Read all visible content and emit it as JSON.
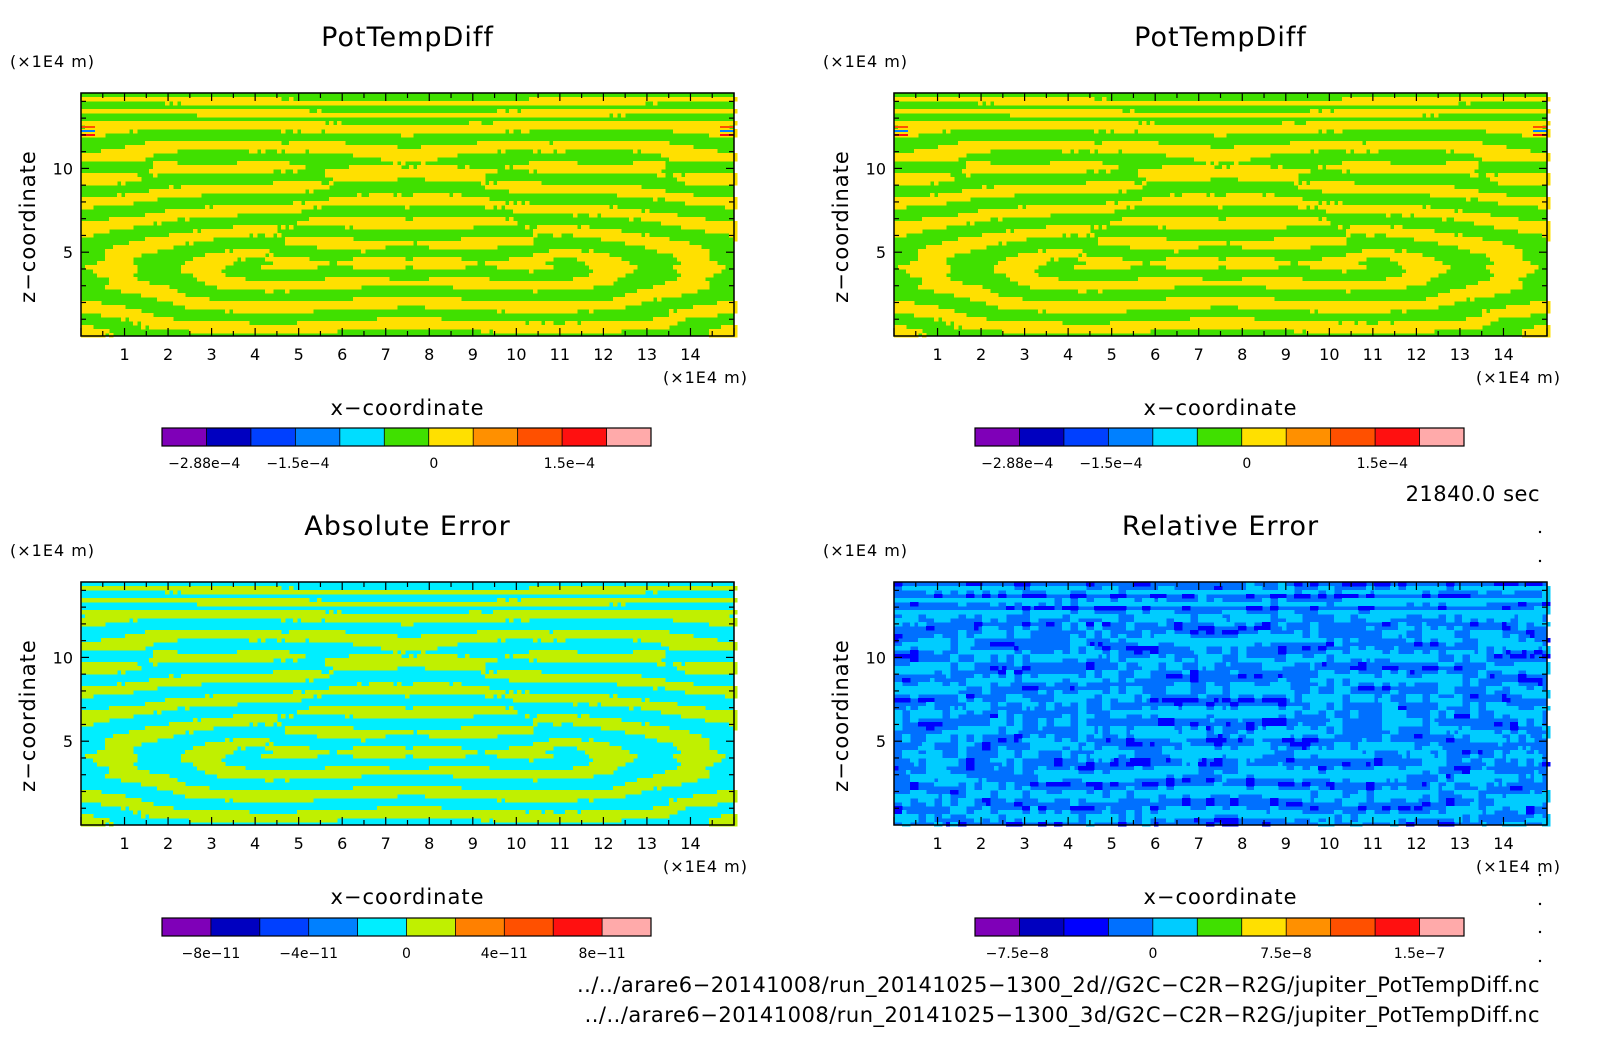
{
  "charts": [
    {
      "title": "PotTempDiff",
      "xlabel": "x−coordinate",
      "ylabel": "z−coordinate",
      "x_unit": "(×1E4 m)",
      "y_unit": "(×1E4 m)",
      "x_ticks": [
        "1",
        "2",
        "3",
        "4",
        "5",
        "6",
        "7",
        "8",
        "9",
        "10",
        "11",
        "12",
        "13",
        "14"
      ],
      "y_ticks": [
        "5",
        "10"
      ],
      "colorbar_labels": [
        "−2.88e−4",
        "−1.5e−4",
        "0",
        "1.5e−4"
      ]
    },
    {
      "title": "PotTempDiff",
      "xlabel": "x−coordinate",
      "ylabel": "z−coordinate",
      "x_unit": "(×1E4 m)",
      "y_unit": "(×1E4 m)",
      "x_ticks": [
        "1",
        "2",
        "3",
        "4",
        "5",
        "6",
        "7",
        "8",
        "9",
        "10",
        "11",
        "12",
        "13",
        "14"
      ],
      "y_ticks": [
        "5",
        "10"
      ],
      "colorbar_labels": [
        "−2.88e−4",
        "−1.5e−4",
        "0",
        "1.5e−4"
      ]
    },
    {
      "title": "Absolute Error",
      "xlabel": "x−coordinate",
      "ylabel": "z−coordinate",
      "x_unit": "(×1E4 m)",
      "y_unit": "(×1E4 m)",
      "x_ticks": [
        "1",
        "2",
        "3",
        "4",
        "5",
        "6",
        "7",
        "8",
        "9",
        "10",
        "11",
        "12",
        "13",
        "14"
      ],
      "y_ticks": [
        "5",
        "10"
      ],
      "colorbar_labels": [
        "−8e−11",
        "−4e−11",
        "0",
        "4e−11",
        "8e−11"
      ]
    },
    {
      "title": "Relative Error",
      "xlabel": "x−coordinate",
      "ylabel": "z−coordinate",
      "x_unit": "(×1E4 m)",
      "y_unit": "(×1E4 m)",
      "x_ticks": [
        "1",
        "2",
        "3",
        "4",
        "5",
        "6",
        "7",
        "8",
        "9",
        "10",
        "11",
        "12",
        "13",
        "14"
      ],
      "y_ticks": [
        "5",
        "10"
      ],
      "colorbar_labels": [
        "−7.5e−8",
        "0",
        "7.5e−8",
        "1.5e−7"
      ]
    }
  ],
  "time_label": "21840.0 sec",
  "file_paths": [
    "../../arare6−20141008/run_20141025−1300_2d//G2C−C2R−R2G/jupiter_PotTempDiff.nc",
    "../../arare6−20141008/run_20141025−1300_3d/G2C−C2R−R2G/jupiter_PotTempDiff.nc"
  ],
  "palette": [
    "#7f00b8",
    "#0000c0",
    "#0040ff",
    "#0080ff",
    "#00ddff",
    "#40e000",
    "#ffe000",
    "#ff9000",
    "#ff5000",
    "#ff1010",
    "#ffaaaa"
  ],
  "palette_abs": [
    "#7f00b8",
    "#0000c0",
    "#0040ff",
    "#0080ff",
    "#00eeff",
    "#c0f000",
    "#ffaa00",
    "#ff8000",
    "#ff5000",
    "#ff1010",
    "#ffaaaa"
  ],
  "palette_rel": [
    "#7f00b8",
    "#0000c0",
    "#0000ff",
    "#0070ff",
    "#00ccff",
    "#40e000",
    "#ffe000",
    "#ff9000",
    "#ff5000",
    "#ff1010",
    "#ffaaaa"
  ],
  "chart_data": [
    {
      "type": "heatmap",
      "title": "PotTempDiff",
      "xlabel": "x−coordinate",
      "ylabel": "z−coordinate",
      "xlim": [
        0,
        15
      ],
      "ylim": [
        0,
        14.5
      ],
      "colorbar": {
        "levels": 11,
        "tick_values": [
          -0.000288,
          -0.00015,
          0,
          0.00015
        ],
        "dominant_colors": [
          "#40e000",
          "#ffe000"
        ]
      }
    },
    {
      "type": "heatmap",
      "title": "PotTempDiff",
      "xlabel": "x−coordinate",
      "ylabel": "z−coordinate",
      "xlim": [
        0,
        15
      ],
      "ylim": [
        0,
        14.5
      ],
      "colorbar": {
        "levels": 11,
        "tick_values": [
          -0.000288,
          -0.00015,
          0,
          0.00015
        ],
        "dominant_colors": [
          "#40e000",
          "#ffe000"
        ]
      }
    },
    {
      "type": "heatmap",
      "title": "Absolute Error",
      "xlabel": "x−coordinate",
      "ylabel": "z−coordinate",
      "xlim": [
        0,
        15
      ],
      "ylim": [
        0,
        14.5
      ],
      "colorbar": {
        "levels": 10,
        "tick_values": [
          -8e-11,
          -4e-11,
          0,
          4e-11,
          8e-11
        ],
        "dominant_colors": [
          "#00eeff",
          "#c0f000"
        ]
      }
    },
    {
      "type": "heatmap",
      "title": "Relative Error",
      "xlabel": "x−coordinate",
      "ylabel": "z−coordinate",
      "xlim": [
        0,
        15
      ],
      "ylim": [
        0,
        14.5
      ],
      "colorbar": {
        "levels": 11,
        "tick_values": [
          -7.5e-08,
          0,
          7.5e-08,
          1.5e-07
        ],
        "dominant_colors": [
          "#0070ff",
          "#00ccff"
        ]
      }
    }
  ]
}
